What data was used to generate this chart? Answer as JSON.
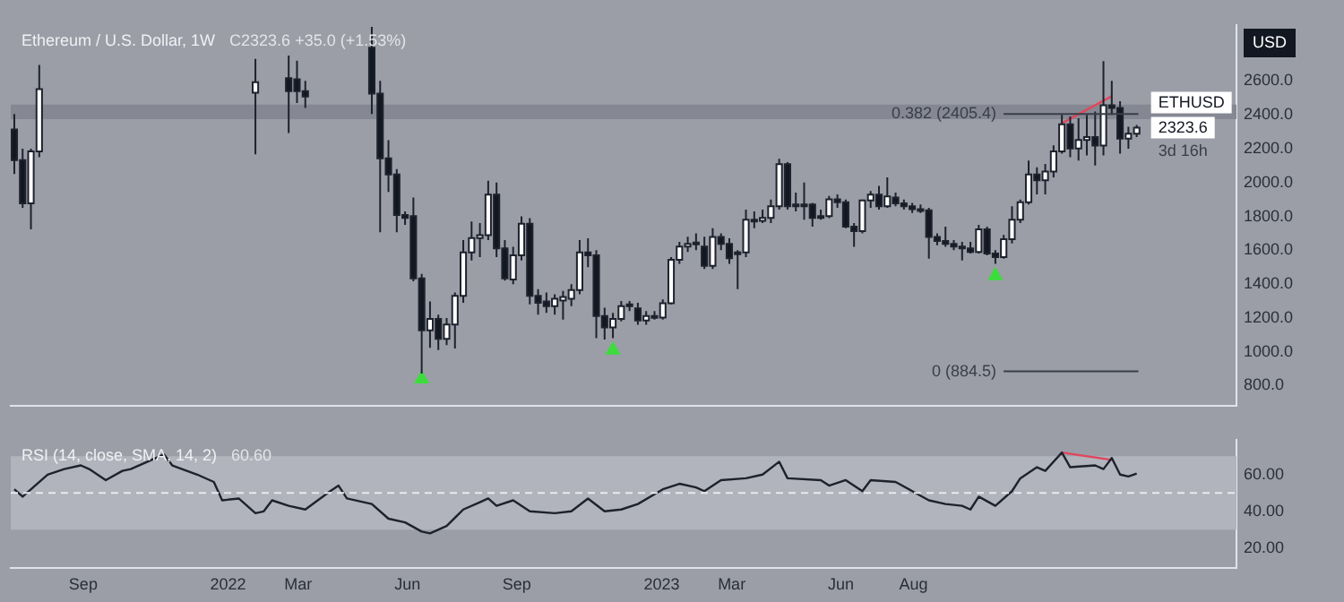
{
  "chart_data": [
    {
      "type": "candlestick",
      "title": "Ethereum / U.S. Dollar, 1W",
      "subtitle": "C2323.6 +35.0 (+1.53%)",
      "tick_labels": "y",
      "x": [
        "2021-07-05",
        "2021-07-12",
        "2021-07-19",
        "2021-07-26",
        "2022-01-24",
        "2022-02-21",
        "2022-02-28",
        "2022-03-07",
        "2022-05-02",
        "2022-05-09",
        "2022-05-16",
        "2022-05-23",
        "2022-05-30",
        "2022-06-06",
        "2022-06-13",
        "2022-06-20",
        "2022-06-27",
        "2022-07-04",
        "2022-07-11",
        "2022-07-18",
        "2022-07-25",
        "2022-08-01",
        "2022-08-08",
        "2022-08-15",
        "2022-08-22",
        "2022-08-29",
        "2022-09-05",
        "2022-09-12",
        "2022-09-19",
        "2022-09-26",
        "2022-10-03",
        "2022-10-10",
        "2022-10-17",
        "2022-10-24",
        "2022-10-31",
        "2022-11-07",
        "2022-11-14",
        "2022-11-21",
        "2022-11-28",
        "2022-12-05",
        "2022-12-12",
        "2022-12-19",
        "2022-12-26",
        "2023-01-02",
        "2023-01-09",
        "2023-01-16",
        "2023-01-23",
        "2023-01-30",
        "2023-02-06",
        "2023-02-13",
        "2023-02-20",
        "2023-02-27",
        "2023-03-06",
        "2023-03-13",
        "2023-03-20",
        "2023-03-27",
        "2023-04-03",
        "2023-04-10",
        "2023-04-17",
        "2023-04-24",
        "2023-05-01",
        "2023-05-08",
        "2023-05-15",
        "2023-05-22",
        "2023-05-29",
        "2023-06-05",
        "2023-06-12",
        "2023-06-19",
        "2023-06-26",
        "2023-07-03",
        "2023-07-10",
        "2023-07-17",
        "2023-07-24",
        "2023-07-31",
        "2023-08-07",
        "2023-08-14",
        "2023-08-21",
        "2023-08-28",
        "2023-09-04",
        "2023-09-11",
        "2023-09-18",
        "2023-09-25",
        "2023-10-02",
        "2023-10-09",
        "2023-10-16",
        "2023-10-23",
        "2023-10-30",
        "2023-11-06",
        "2023-11-13",
        "2023-11-20",
        "2023-11-27",
        "2023-12-04",
        "2023-12-11",
        "2023-12-18",
        "2023-12-25",
        "2024-01-01",
        "2024-01-08",
        "2024-01-15",
        "2024-01-22",
        "2024-01-29",
        "2024-02-05"
      ],
      "ohlc": [
        [
          2313,
          2405,
          2050,
          2132
        ],
        [
          2132,
          2200,
          1850,
          1877
        ],
        [
          1877,
          2200,
          1723,
          2184
        ],
        [
          2184,
          2695,
          2150,
          2552
        ],
        [
          2531,
          2730,
          2167,
          2593
        ],
        [
          2616,
          2750,
          2293,
          2540
        ],
        [
          2610,
          2720,
          2470,
          2540
        ],
        [
          2540,
          2600,
          2440,
          2508
        ],
        [
          2797,
          2920,
          2405,
          2525
        ],
        [
          2525,
          2600,
          1706,
          2143
        ],
        [
          2143,
          2250,
          1945,
          2047
        ],
        [
          2047,
          2080,
          1706,
          1808
        ],
        [
          1808,
          1830,
          1750,
          1791
        ],
        [
          1801,
          1911,
          1416,
          1434
        ],
        [
          1434,
          1460,
          871,
          1127
        ],
        [
          1127,
          1297,
          1024,
          1195
        ],
        [
          1195,
          1220,
          1010,
          1076
        ],
        [
          1076,
          1200,
          1040,
          1161
        ],
        [
          1161,
          1350,
          1020,
          1331
        ],
        [
          1331,
          1660,
          1290,
          1587
        ],
        [
          1587,
          1770,
          1540,
          1672
        ],
        [
          1672,
          1760,
          1560,
          1689
        ],
        [
          1689,
          2010,
          1660,
          1928
        ],
        [
          1928,
          2000,
          1560,
          1611
        ],
        [
          1611,
          1660,
          1420,
          1434
        ],
        [
          1427,
          1620,
          1400,
          1570
        ],
        [
          1570,
          1800,
          1540,
          1757
        ],
        [
          1757,
          1790,
          1280,
          1331
        ],
        [
          1331,
          1370,
          1220,
          1290
        ],
        [
          1297,
          1350,
          1230,
          1270
        ],
        [
          1270,
          1340,
          1220,
          1314
        ],
        [
          1303,
          1360,
          1190,
          1324
        ],
        [
          1314,
          1400,
          1270,
          1365
        ],
        [
          1365,
          1660,
          1340,
          1587
        ],
        [
          1587,
          1670,
          1500,
          1570
        ],
        [
          1570,
          1600,
          1080,
          1212
        ],
        [
          1212,
          1260,
          1073,
          1144
        ],
        [
          1144,
          1230,
          1080,
          1195
        ],
        [
          1195,
          1300,
          1180,
          1270
        ],
        [
          1270,
          1300,
          1240,
          1280
        ],
        [
          1256,
          1290,
          1160,
          1185
        ],
        [
          1185,
          1240,
          1160,
          1212
        ],
        [
          1212,
          1240,
          1190,
          1205
        ],
        [
          1202,
          1310,
          1190,
          1287
        ],
        [
          1287,
          1560,
          1280,
          1543
        ],
        [
          1543,
          1650,
          1520,
          1621
        ],
        [
          1621,
          1680,
          1590,
          1638
        ],
        [
          1638,
          1700,
          1600,
          1645
        ],
        [
          1621,
          1680,
          1490,
          1508
        ],
        [
          1508,
          1730,
          1490,
          1679
        ],
        [
          1679,
          1700,
          1600,
          1638
        ],
        [
          1638,
          1670,
          1520,
          1553
        ],
        [
          1577,
          1600,
          1370,
          1587
        ],
        [
          1587,
          1840,
          1560,
          1781
        ],
        [
          1781,
          1830,
          1730,
          1774
        ],
        [
          1774,
          1840,
          1760,
          1791
        ],
        [
          1791,
          1900,
          1760,
          1860
        ],
        [
          1860,
          2140,
          1840,
          2109
        ],
        [
          2109,
          2120,
          1840,
          1860
        ],
        [
          1860,
          1940,
          1830,
          1870
        ],
        [
          1870,
          2000,
          1780,
          1865
        ],
        [
          1870,
          1880,
          1740,
          1791
        ],
        [
          1791,
          1840,
          1780,
          1802
        ],
        [
          1802,
          1920,
          1790,
          1901
        ],
        [
          1901,
          1930,
          1850,
          1884
        ],
        [
          1884,
          1900,
          1730,
          1740
        ],
        [
          1740,
          1760,
          1620,
          1713
        ],
        [
          1713,
          1900,
          1700,
          1894
        ],
        [
          1894,
          1950,
          1850,
          1928
        ],
        [
          1928,
          1980,
          1840,
          1860
        ],
        [
          1860,
          2030,
          1850,
          1918
        ],
        [
          1911,
          1940,
          1860,
          1877
        ],
        [
          1877,
          1900,
          1840,
          1860
        ],
        [
          1860,
          1880,
          1820,
          1843
        ],
        [
          1843,
          1870,
          1820,
          1836
        ],
        [
          1836,
          1850,
          1550,
          1679
        ],
        [
          1679,
          1700,
          1630,
          1655
        ],
        [
          1655,
          1740,
          1620,
          1638
        ],
        [
          1638,
          1660,
          1600,
          1621
        ],
        [
          1621,
          1650,
          1540,
          1611
        ],
        [
          1611,
          1650,
          1580,
          1590
        ],
        [
          1590,
          1750,
          1580,
          1724
        ],
        [
          1724,
          1740,
          1570,
          1580
        ],
        [
          1580,
          1600,
          1520,
          1560
        ],
        [
          1560,
          1690,
          1550,
          1665
        ],
        [
          1665,
          1860,
          1640,
          1781
        ],
        [
          1781,
          1900,
          1760,
          1884
        ],
        [
          1884,
          2130,
          1870,
          2047
        ],
        [
          2047,
          2090,
          1930,
          2013
        ],
        [
          2013,
          2110,
          1930,
          2065
        ],
        [
          2065,
          2220,
          2030,
          2184
        ],
        [
          2184,
          2400,
          2170,
          2344
        ],
        [
          2344,
          2390,
          2150,
          2201
        ],
        [
          2201,
          2380,
          2130,
          2252
        ],
        [
          2252,
          2400,
          2160,
          2269
        ],
        [
          2269,
          2420,
          2100,
          2218
        ],
        [
          2218,
          2717,
          2160,
          2457
        ],
        [
          2457,
          2600,
          2400,
          2440
        ],
        [
          2440,
          2480,
          2170,
          2259
        ],
        [
          2259,
          2330,
          2200,
          2288.6
        ],
        [
          2288.6,
          2340,
          2268.3,
          2323.6
        ]
      ],
      "series": [
        {
          "type": "scatter",
          "marker": "triangle",
          "color": "#3ddc3d",
          "x": [
            "2022-06-13",
            "2022-11-21",
            "2023-10-09"
          ],
          "values": [
            840,
            1010,
            1450
          ]
        },
        {
          "type": "line",
          "color": "#e0475c",
          "x": [
            "2023-12-04",
            "2024-01-15"
          ],
          "values": [
            2350,
            2510
          ]
        }
      ],
      "xlim": [
        "2021-07-02",
        "2024-04-29"
      ],
      "ylim": [
        680,
        2930
      ],
      "yticks": [
        {
          "value": 800,
          "label": "800.0"
        },
        {
          "value": 1000,
          "label": "1000.0"
        },
        {
          "value": 1200,
          "label": "1200.0"
        },
        {
          "value": 1400,
          "label": "1400.0"
        },
        {
          "value": 1600,
          "label": "1600.0"
        },
        {
          "value": 1800,
          "label": "1800.0"
        },
        {
          "value": 2000,
          "label": "2000.0"
        },
        {
          "value": 2200,
          "label": "2200.0"
        },
        {
          "value": 2400,
          "label": "2400.0"
        },
        {
          "value": 2600,
          "label": "2600.0"
        }
      ],
      "bands": [
        {
          "axis": "y",
          "from": 2375,
          "to": 2460,
          "color": "#858892"
        }
      ],
      "ref_lines": [
        {
          "axis": "y",
          "value": 2405.4,
          "label": "0.382 (2405.4)",
          "color": "#3a3e49"
        },
        {
          "axis": "y",
          "value": 884.5,
          "label": "0 (884.5)",
          "color": "#3a3e49"
        }
      ],
      "annotations": [
        {
          "text": "2323.6",
          "x": "2024-02-05",
          "y": 2323.6
        },
        "ETHUSD",
        "3d 16h",
        "USD"
      ]
    },
    {
      "type": "line",
      "title": "RSI (14, close, SMA, 14, 2)",
      "subtitle": "60.60",
      "x": [
        "2021-07-05",
        "2021-07-12",
        "2021-08-02",
        "2021-08-16",
        "2021-08-30",
        "2021-09-06",
        "2021-09-20",
        "2021-10-04",
        "2021-10-11",
        "2021-11-01",
        "2021-11-08",
        "2021-11-15",
        "2021-12-06",
        "2021-12-20",
        "2021-12-27",
        "2022-01-10",
        "2022-01-24",
        "2022-01-31",
        "2022-02-07",
        "2022-02-21",
        "2022-03-07",
        "2022-03-28",
        "2022-04-04",
        "2022-04-11",
        "2022-05-02",
        "2022-05-16",
        "2022-05-30",
        "2022-06-13",
        "2022-06-20",
        "2022-07-04",
        "2022-07-18",
        "2022-08-01",
        "2022-08-08",
        "2022-08-15",
        "2022-08-29",
        "2022-09-12",
        "2022-10-03",
        "2022-10-17",
        "2022-10-31",
        "2022-11-14",
        "2022-11-28",
        "2022-12-12",
        "2023-01-02",
        "2023-01-16",
        "2023-01-30",
        "2023-02-06",
        "2023-02-20",
        "2023-03-13",
        "2023-03-27",
        "2023-04-10",
        "2023-04-17",
        "2023-05-15",
        "2023-05-22",
        "2023-06-05",
        "2023-06-19",
        "2023-06-26",
        "2023-07-17",
        "2023-07-31",
        "2023-08-14",
        "2023-08-28",
        "2023-09-11",
        "2023-09-18",
        "2023-09-25",
        "2023-10-09",
        "2023-10-23",
        "2023-10-30",
        "2023-11-13",
        "2023-11-20",
        "2023-12-04",
        "2023-12-11",
        "2024-01-01",
        "2024-01-08",
        "2024-01-15",
        "2024-01-22",
        "2024-01-29",
        "2024-02-05"
      ],
      "series": [
        {
          "color": "#1e222d",
          "values": [
            52,
            48,
            60,
            63,
            65,
            63,
            57,
            62,
            63,
            69,
            71,
            65,
            60,
            56,
            46,
            47,
            39,
            40,
            46,
            43,
            41,
            51,
            54,
            47,
            44,
            36,
            34,
            29,
            28,
            32,
            41,
            45,
            47,
            43,
            46,
            40,
            39,
            40,
            47,
            40,
            41,
            44,
            52,
            55,
            53,
            51,
            57,
            58,
            60,
            67,
            58,
            57,
            54,
            57,
            51,
            57,
            56,
            51,
            46,
            44,
            43,
            41,
            48,
            43,
            51,
            58,
            64,
            62,
            72,
            64,
            65,
            63,
            69,
            60,
            59,
            60.6
          ]
        },
        {
          "color": "#e0475c",
          "x": [
            "2023-12-04",
            "2024-01-15"
          ],
          "values": [
            72,
            68
          ]
        }
      ],
      "xlim": [
        "2021-07-02",
        "2024-04-29"
      ],
      "xticks": [
        {
          "value": "2021-09-01",
          "label": "Sep"
        },
        {
          "value": "2022-01-01",
          "label": "2022"
        },
        {
          "value": "2022-03-01",
          "label": "Mar"
        },
        {
          "value": "2022-06-01",
          "label": "Jun"
        },
        {
          "value": "2022-09-01",
          "label": "Sep"
        },
        {
          "value": "2023-01-01",
          "label": "2023"
        },
        {
          "value": "2023-03-01",
          "label": "Mar"
        },
        {
          "value": "2023-06-01",
          "label": "Jun"
        },
        {
          "value": "2023-08-01",
          "label": "Aug"
        }
      ],
      "ylim": [
        9,
        79
      ],
      "yticks": [
        {
          "value": 20,
          "label": "20.00"
        },
        {
          "value": 40,
          "label": "40.00"
        },
        {
          "value": 60,
          "label": "60.00"
        }
      ],
      "bands": [
        {
          "axis": "y",
          "from": 30,
          "to": 70,
          "color": "#b1b4bc"
        }
      ],
      "ref_lines": [
        {
          "axis": "y",
          "value": 50,
          "line_style": "dashed",
          "color": "#e8e9ee"
        }
      ]
    }
  ]
}
